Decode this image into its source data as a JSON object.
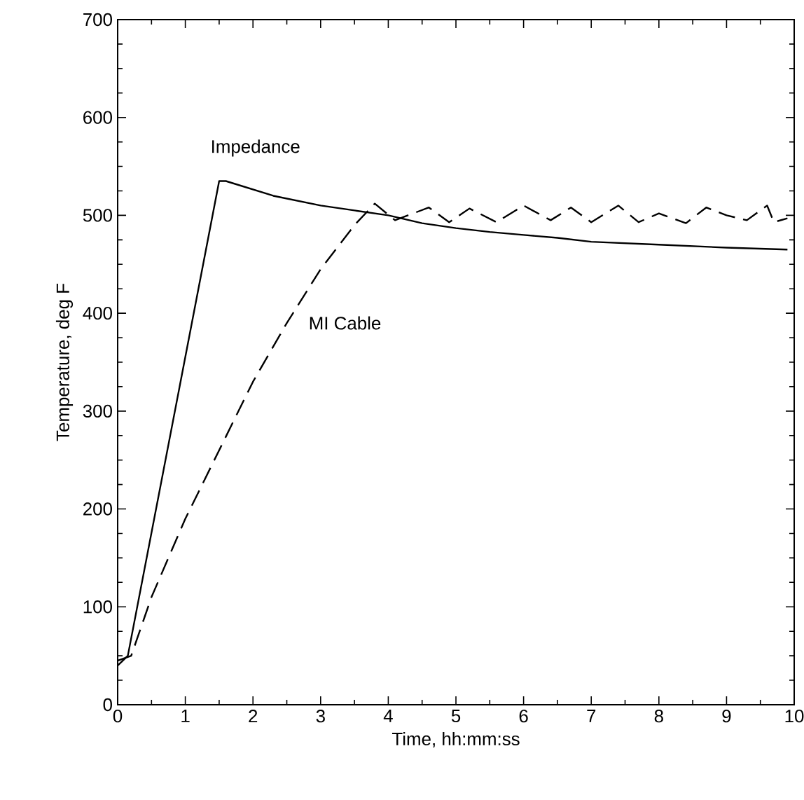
{
  "chart_data": {
    "type": "line",
    "xlabel": "Time, hh:mm:ss",
    "ylabel": "Temperature, deg F",
    "xlim": [
      0,
      10
    ],
    "xticks": [
      0,
      1,
      2,
      3,
      4,
      5,
      6,
      7,
      8,
      9,
      10
    ],
    "ylim": [
      0,
      700
    ],
    "yticks": [
      0,
      100,
      200,
      300,
      400,
      500,
      600,
      700
    ],
    "grid": false,
    "legend": false,
    "marker": "none",
    "series": [
      {
        "name": "Impedance",
        "color": "#000000",
        "line_style": "solid",
        "x": [
          0,
          0.15,
          1.5,
          1.6,
          2.3,
          3,
          3.5,
          4,
          4.5,
          5,
          5.5,
          6,
          6.5,
          7,
          8,
          9,
          9.9
        ],
        "values": [
          40,
          50,
          535,
          535,
          520,
          510,
          505,
          500,
          492,
          487,
          483,
          480,
          477,
          473,
          470,
          467,
          465
        ]
      },
      {
        "name": "MI Cable",
        "color": "#000000",
        "line_style": "dashed",
        "x": [
          0,
          0.2,
          0.5,
          1,
          1.5,
          2,
          2.5,
          3,
          3.5,
          3.8,
          4.1,
          4.6,
          4.9,
          5.2,
          5.6,
          6,
          6.4,
          6.7,
          7,
          7.4,
          7.7,
          8,
          8.4,
          8.7,
          9,
          9.3,
          9.6,
          9.7,
          9.9
        ],
        "values": [
          45,
          50,
          110,
          190,
          260,
          330,
          390,
          445,
          490,
          512,
          495,
          508,
          493,
          507,
          493,
          510,
          495,
          508,
          493,
          510,
          493,
          502,
          492,
          508,
          500,
          495,
          510,
          493,
          497
        ]
      }
    ]
  }
}
